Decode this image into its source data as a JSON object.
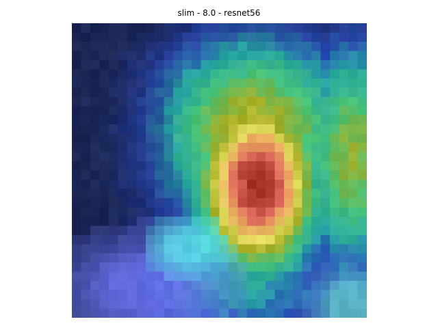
{
  "figure": {
    "title": "slim - 8.0 - resnet56"
  },
  "image": {
    "description_role": "pixelated heatmap overlay",
    "grid_rows": 32,
    "grid_cols": 32,
    "palette": {
      "dark_navy": "#1b2340",
      "deep_blue": "#202c8a",
      "blue": "#3046c0",
      "periwinkle": "#6b74f0",
      "cyan": "#5ce8e8",
      "teal": "#2aa39a",
      "green": "#4fc27a",
      "olive": "#a5a51e",
      "yellow": "#e6e066",
      "orange": "#e8a25c",
      "salmon": "#de6a5e",
      "dark_red": "#a12f20"
    }
  }
}
